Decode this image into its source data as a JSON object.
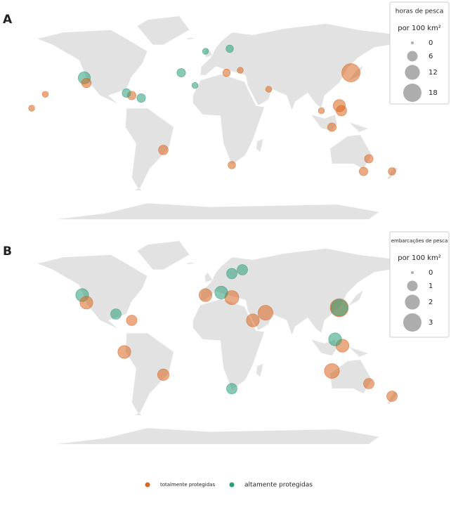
{
  "panels": [
    {
      "label": "A",
      "legend": {
        "title": "horas de pesca",
        "subtitle": "por 100 km²",
        "ticks": [
          0,
          6,
          12,
          18
        ]
      },
      "points": {
        "lon": [
          133,
          122,
          124,
          -120,
          -118,
          -75,
          -80,
          -66,
          15,
          18,
          -45,
          150,
          145,
          115,
          172,
          -157,
          20,
          -15,
          -28,
          -170,
          28,
          55,
          105,
          -5
        ],
        "lat": [
          38,
          12,
          8,
          34,
          30,
          20,
          22,
          18,
          38,
          57,
          -23,
          -30,
          -40,
          -5,
          -40,
          21,
          -35,
          28,
          38,
          10,
          40,
          25,
          8,
          55
        ],
        "values": [
          18,
          8,
          6,
          8,
          5,
          4,
          4,
          4,
          3,
          3,
          5,
          4,
          4,
          4,
          3,
          2,
          3,
          2,
          4,
          2,
          2,
          2,
          2,
          2
        ],
        "group": [
          0,
          0,
          0,
          1,
          0,
          0,
          1,
          1,
          0,
          1,
          0,
          0,
          0,
          0,
          0,
          0,
          0,
          1,
          1,
          0,
          0,
          0,
          0,
          1
        ]
      }
    },
    {
      "label": "B",
      "legend": {
        "title": "embarcações de pesca",
        "subtitle": "por 100 km²",
        "ticks": [
          0,
          1,
          2,
          3
        ]
      },
      "points": {
        "lon": [
          122,
          122,
          52,
          40,
          20,
          10,
          -5,
          -122,
          -118,
          -82,
          -45,
          115,
          125,
          118,
          -75,
          -90,
          20,
          150,
          172,
          20,
          30
        ],
        "lat": [
          30,
          30,
          26,
          20,
          38,
          42,
          40,
          40,
          34,
          -5,
          -23,
          -20,
          0,
          5,
          20,
          25,
          -34,
          -30,
          -40,
          57,
          60
        ],
        "values": [
          3,
          2.5,
          2,
          1.5,
          1.8,
          1.5,
          1.5,
          1.5,
          1.5,
          1.5,
          1.2,
          2,
          1.5,
          1.5,
          1,
          1,
          1,
          1,
          1,
          1,
          1
        ],
        "group": [
          0,
          1,
          0,
          0,
          0,
          1,
          0,
          1,
          0,
          0,
          0,
          0,
          0,
          1,
          0,
          1,
          1,
          0,
          0,
          1,
          1
        ]
      }
    }
  ],
  "groups": [
    {
      "name": "totalmente protegidas",
      "color": "#d9661f"
    },
    {
      "name": "altamente protegidas",
      "color": "#2a9d7a"
    }
  ]
}
